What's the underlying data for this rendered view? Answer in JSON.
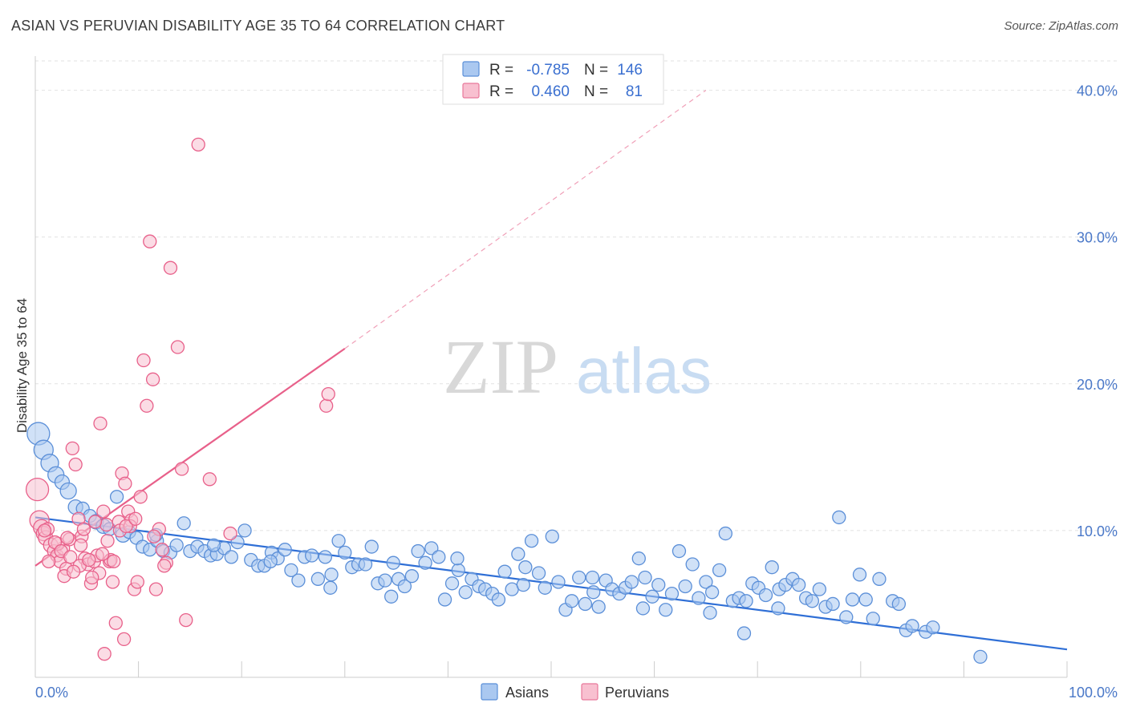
{
  "title": "ASIAN VS PERUVIAN DISABILITY AGE 35 TO 64 CORRELATION CHART",
  "source": "Source: ZipAtlas.com",
  "watermark": {
    "zip": "ZIP",
    "atlas": "atlas"
  },
  "legend_top": [
    {
      "r_label": "R =",
      "r": "-0.785",
      "n_label": "N =",
      "n": "146",
      "fill": "#aac8f0",
      "stroke": "#5b8fd8"
    },
    {
      "r_label": "R =",
      "r": "0.460",
      "n_label": "N =",
      "n": "81",
      "fill": "#f8c0d0",
      "stroke": "#e8789a"
    }
  ],
  "legend_bottom": [
    {
      "label": "Asians",
      "fill": "#aac8f0",
      "stroke": "#5b8fd8"
    },
    {
      "label": "Peruvians",
      "fill": "#f8c0d0",
      "stroke": "#e8789a"
    }
  ],
  "chart_data": {
    "type": "scatter",
    "title": "ASIAN VS PERUVIAN DISABILITY AGE 35 TO 64 CORRELATION CHART",
    "xlabel": "",
    "ylabel": "Disability Age 35 to 64",
    "xlim": [
      0,
      100
    ],
    "ylim": [
      0,
      42
    ],
    "x_tick_labels": [
      "0.0%",
      "100.0%"
    ],
    "y_ticks": [
      10,
      20,
      30,
      40
    ],
    "y_tick_labels": [
      "10.0%",
      "20.0%",
      "30.0%",
      "40.0%"
    ],
    "grid": "horizontal dashed",
    "series": [
      {
        "name": "Asians",
        "color": "#5b8fd8",
        "fill": "#aac8f0",
        "trend": {
          "x0": 0,
          "y0": 10.9,
          "x1": 100,
          "y1": 1.9
        },
        "points": [
          [
            0.3,
            16.6,
            14
          ],
          [
            0.8,
            15.5,
            12
          ],
          [
            1.4,
            14.6,
            11
          ],
          [
            2.0,
            13.8,
            10
          ],
          [
            2.6,
            13.3,
            9
          ],
          [
            3.2,
            12.7,
            10
          ],
          [
            3.9,
            11.6,
            9
          ],
          [
            4.6,
            11.5,
            8
          ],
          [
            5.3,
            11.0,
            8
          ],
          [
            5.9,
            10.6,
            9
          ],
          [
            6.6,
            10.3,
            9
          ],
          [
            7.2,
            10.1,
            8
          ],
          [
            7.9,
            12.3,
            8
          ],
          [
            8.5,
            9.7,
            9
          ],
          [
            9.1,
            9.9,
            8
          ],
          [
            9.8,
            9.5,
            8
          ],
          [
            10.4,
            8.9,
            8
          ],
          [
            11.1,
            8.7,
            8
          ],
          [
            11.8,
            9.3,
            8
          ],
          [
            12.4,
            8.6,
            8
          ],
          [
            13.1,
            8.5,
            8
          ],
          [
            13.7,
            9.0,
            8
          ],
          [
            14.4,
            10.5,
            8
          ],
          [
            15.0,
            8.6,
            8
          ],
          [
            15.7,
            8.9,
            8
          ],
          [
            16.4,
            8.6,
            8
          ],
          [
            17.0,
            8.3,
            8
          ],
          [
            17.6,
            8.4,
            8
          ],
          [
            18.3,
            8.8,
            8
          ],
          [
            19.0,
            8.2,
            8
          ],
          [
            19.6,
            9.2,
            8
          ],
          [
            20.3,
            10.0,
            8
          ],
          [
            20.9,
            8.0,
            8
          ],
          [
            21.6,
            7.6,
            8
          ],
          [
            22.2,
            7.6,
            8
          ],
          [
            22.9,
            8.5,
            8
          ],
          [
            23.5,
            8.1,
            8
          ],
          [
            24.2,
            8.7,
            8
          ],
          [
            24.8,
            7.3,
            8
          ],
          [
            25.5,
            6.6,
            8
          ],
          [
            26.1,
            8.2,
            8
          ],
          [
            26.8,
            8.3,
            8
          ],
          [
            27.4,
            6.7,
            8
          ],
          [
            28.1,
            8.2,
            8
          ],
          [
            28.7,
            7.0,
            8
          ],
          [
            29.4,
            9.3,
            8
          ],
          [
            30.0,
            8.5,
            8
          ],
          [
            30.7,
            7.5,
            8
          ],
          [
            31.3,
            7.7,
            8
          ],
          [
            32.0,
            7.7,
            8
          ],
          [
            32.6,
            8.9,
            8
          ],
          [
            33.2,
            6.4,
            8
          ],
          [
            33.9,
            6.6,
            8
          ],
          [
            34.5,
            5.5,
            8
          ],
          [
            35.2,
            6.7,
            8
          ],
          [
            35.8,
            6.2,
            8
          ],
          [
            36.5,
            6.9,
            8
          ],
          [
            37.1,
            8.6,
            8
          ],
          [
            37.8,
            7.8,
            8
          ],
          [
            38.4,
            8.8,
            8
          ],
          [
            39.1,
            8.2,
            8
          ],
          [
            39.7,
            5.3,
            8
          ],
          [
            40.4,
            6.4,
            8
          ],
          [
            41.0,
            7.3,
            8
          ],
          [
            41.7,
            5.8,
            8
          ],
          [
            42.3,
            6.7,
            8
          ],
          [
            43.0,
            6.2,
            8
          ],
          [
            43.6,
            6.0,
            8
          ],
          [
            44.3,
            5.7,
            8
          ],
          [
            44.9,
            5.3,
            8
          ],
          [
            45.5,
            7.2,
            8
          ],
          [
            46.2,
            6.0,
            8
          ],
          [
            46.8,
            8.4,
            8
          ],
          [
            47.5,
            7.5,
            8
          ],
          [
            48.1,
            9.3,
            8
          ],
          [
            48.8,
            7.1,
            8
          ],
          [
            49.4,
            6.1,
            8
          ],
          [
            50.1,
            9.6,
            8
          ],
          [
            50.7,
            6.5,
            8
          ],
          [
            51.4,
            4.6,
            8
          ],
          [
            52.0,
            5.2,
            8
          ],
          [
            52.7,
            6.8,
            8
          ],
          [
            53.3,
            5.0,
            8
          ],
          [
            54.0,
            6.8,
            8
          ],
          [
            54.6,
            4.8,
            8
          ],
          [
            55.3,
            6.6,
            8
          ],
          [
            55.9,
            6.0,
            8
          ],
          [
            56.6,
            5.7,
            8
          ],
          [
            57.2,
            6.1,
            8
          ],
          [
            57.8,
            6.5,
            8
          ],
          [
            58.5,
            8.1,
            8
          ],
          [
            59.1,
            6.8,
            8
          ],
          [
            59.8,
            5.5,
            8
          ],
          [
            60.4,
            6.3,
            8
          ],
          [
            61.1,
            4.6,
            8
          ],
          [
            61.7,
            5.7,
            8
          ],
          [
            62.4,
            8.6,
            8
          ],
          [
            63.0,
            6.2,
            8
          ],
          [
            63.7,
            7.7,
            8
          ],
          [
            64.3,
            5.4,
            8
          ],
          [
            65.0,
            6.5,
            8
          ],
          [
            65.6,
            5.8,
            8
          ],
          [
            66.3,
            7.3,
            8
          ],
          [
            66.9,
            9.8,
            8
          ],
          [
            67.6,
            5.2,
            8
          ],
          [
            68.2,
            5.4,
            8
          ],
          [
            68.9,
            5.2,
            8
          ],
          [
            69.5,
            6.4,
            8
          ],
          [
            70.1,
            6.1,
            8
          ],
          [
            70.8,
            5.6,
            8
          ],
          [
            71.4,
            7.5,
            8
          ],
          [
            72.1,
            6.0,
            8
          ],
          [
            72.7,
            6.3,
            8
          ],
          [
            73.4,
            6.7,
            8
          ],
          [
            74.0,
            6.3,
            8
          ],
          [
            74.7,
            5.4,
            8
          ],
          [
            75.3,
            5.2,
            8
          ],
          [
            76.0,
            6.0,
            8
          ],
          [
            76.6,
            4.8,
            8
          ],
          [
            77.3,
            5.0,
            8
          ],
          [
            77.9,
            10.9,
            8
          ],
          [
            78.6,
            4.1,
            8
          ],
          [
            79.2,
            5.3,
            8
          ],
          [
            79.9,
            7.0,
            8
          ],
          [
            80.5,
            5.3,
            8
          ],
          [
            81.2,
            4.0,
            8
          ],
          [
            81.8,
            6.7,
            8
          ],
          [
            68.7,
            3.0,
            8
          ],
          [
            83.1,
            5.2,
            8
          ],
          [
            83.7,
            5.0,
            8
          ],
          [
            84.4,
            3.2,
            8
          ],
          [
            85.0,
            3.5,
            8
          ],
          [
            86.3,
            3.1,
            8
          ],
          [
            87.0,
            3.4,
            8
          ],
          [
            91.6,
            1.4,
            8
          ],
          [
            72.0,
            4.7,
            8
          ],
          [
            65.4,
            4.4,
            8
          ],
          [
            58.9,
            4.7,
            8
          ],
          [
            54.1,
            5.8,
            8
          ],
          [
            47.3,
            6.3,
            8
          ],
          [
            40.9,
            8.1,
            8
          ],
          [
            34.7,
            7.8,
            8
          ],
          [
            28.6,
            6.1,
            8
          ],
          [
            22.8,
            7.9,
            8
          ],
          [
            17.3,
            9.0,
            8
          ],
          [
            11.7,
            9.7,
            8
          ]
        ]
      },
      {
        "name": "Peruvians",
        "color": "#e8608a",
        "fill": "#f8c0d0",
        "trend": {
          "x0": 0,
          "y0": 7.6,
          "x1": 30,
          "y1": 22.4
        },
        "trend_extension": {
          "x0": 30,
          "y0": 22.4,
          "x1": 65,
          "y1": 40.0
        },
        "points": [
          [
            0.2,
            12.8,
            14
          ],
          [
            0.4,
            10.7,
            12
          ],
          [
            0.6,
            10.2,
            10
          ],
          [
            0.8,
            9.8,
            9
          ],
          [
            1.0,
            9.5,
            9
          ],
          [
            1.2,
            10.1,
            8
          ],
          [
            1.5,
            9.0,
            9
          ],
          [
            1.8,
            8.6,
            8
          ],
          [
            2.1,
            8.3,
            8
          ],
          [
            2.4,
            7.9,
            8
          ],
          [
            2.7,
            8.8,
            8
          ],
          [
            3.0,
            7.4,
            8
          ],
          [
            3.3,
            9.4,
            8
          ],
          [
            3.6,
            15.6,
            8
          ],
          [
            3.9,
            14.5,
            8
          ],
          [
            4.2,
            10.8,
            8
          ],
          [
            4.5,
            9.6,
            8
          ],
          [
            4.8,
            8.1,
            8
          ],
          [
            5.1,
            7.7,
            8
          ],
          [
            5.4,
            6.4,
            8
          ],
          [
            5.7,
            7.9,
            8
          ],
          [
            6.0,
            8.3,
            8
          ],
          [
            6.3,
            17.3,
            8
          ],
          [
            6.6,
            11.3,
            8
          ],
          [
            6.9,
            10.4,
            8
          ],
          [
            7.2,
            7.9,
            8
          ],
          [
            7.5,
            6.5,
            8
          ],
          [
            7.8,
            3.7,
            8
          ],
          [
            8.1,
            10.6,
            8
          ],
          [
            8.4,
            13.9,
            8
          ],
          [
            8.7,
            13.2,
            8
          ],
          [
            9.0,
            11.3,
            8
          ],
          [
            9.3,
            10.7,
            8
          ],
          [
            9.6,
            6.0,
            8
          ],
          [
            9.9,
            6.5,
            8
          ],
          [
            10.2,
            12.3,
            8
          ],
          [
            10.5,
            21.6,
            8
          ],
          [
            10.8,
            18.5,
            8
          ],
          [
            11.1,
            29.7,
            8
          ],
          [
            11.4,
            20.3,
            8
          ],
          [
            11.7,
            6.0,
            8
          ],
          [
            12.0,
            10.1,
            8
          ],
          [
            12.3,
            8.7,
            8
          ],
          [
            12.7,
            7.8,
            8
          ],
          [
            13.1,
            27.9,
            8
          ],
          [
            13.8,
            22.5,
            8
          ],
          [
            14.2,
            14.2,
            8
          ],
          [
            14.6,
            3.9,
            8
          ],
          [
            15.8,
            36.3,
            8
          ],
          [
            16.9,
            13.5,
            8
          ],
          [
            18.9,
            9.8,
            8
          ],
          [
            28.2,
            18.5,
            8
          ],
          [
            28.4,
            19.3,
            8
          ],
          [
            1.3,
            7.9,
            8
          ],
          [
            2.2,
            9.1,
            8
          ],
          [
            3.1,
            9.5,
            8
          ],
          [
            4.3,
            7.6,
            8
          ],
          [
            5.2,
            8.0,
            8
          ],
          [
            6.2,
            7.1,
            8
          ],
          [
            7.3,
            8.0,
            8
          ],
          [
            8.2,
            10.0,
            8
          ],
          [
            9.2,
            10.3,
            8
          ],
          [
            0.9,
            10.0,
            8
          ],
          [
            1.9,
            9.2,
            8
          ],
          [
            2.8,
            6.9,
            8
          ],
          [
            3.7,
            7.2,
            8
          ],
          [
            4.7,
            10.1,
            8
          ],
          [
            5.5,
            6.8,
            8
          ],
          [
            6.5,
            8.4,
            8
          ],
          [
            7.6,
            7.9,
            8
          ],
          [
            8.6,
            2.6,
            8
          ],
          [
            6.7,
            1.6,
            8
          ],
          [
            2.5,
            8.6,
            8
          ],
          [
            3.4,
            8.2,
            8
          ],
          [
            4.4,
            9.0,
            8
          ],
          [
            5.8,
            10.6,
            8
          ],
          [
            7.0,
            9.3,
            8
          ],
          [
            8.8,
            10.3,
            8
          ],
          [
            9.7,
            10.8,
            8
          ],
          [
            11.5,
            9.6,
            8
          ],
          [
            12.5,
            7.6,
            8
          ]
        ]
      }
    ]
  }
}
